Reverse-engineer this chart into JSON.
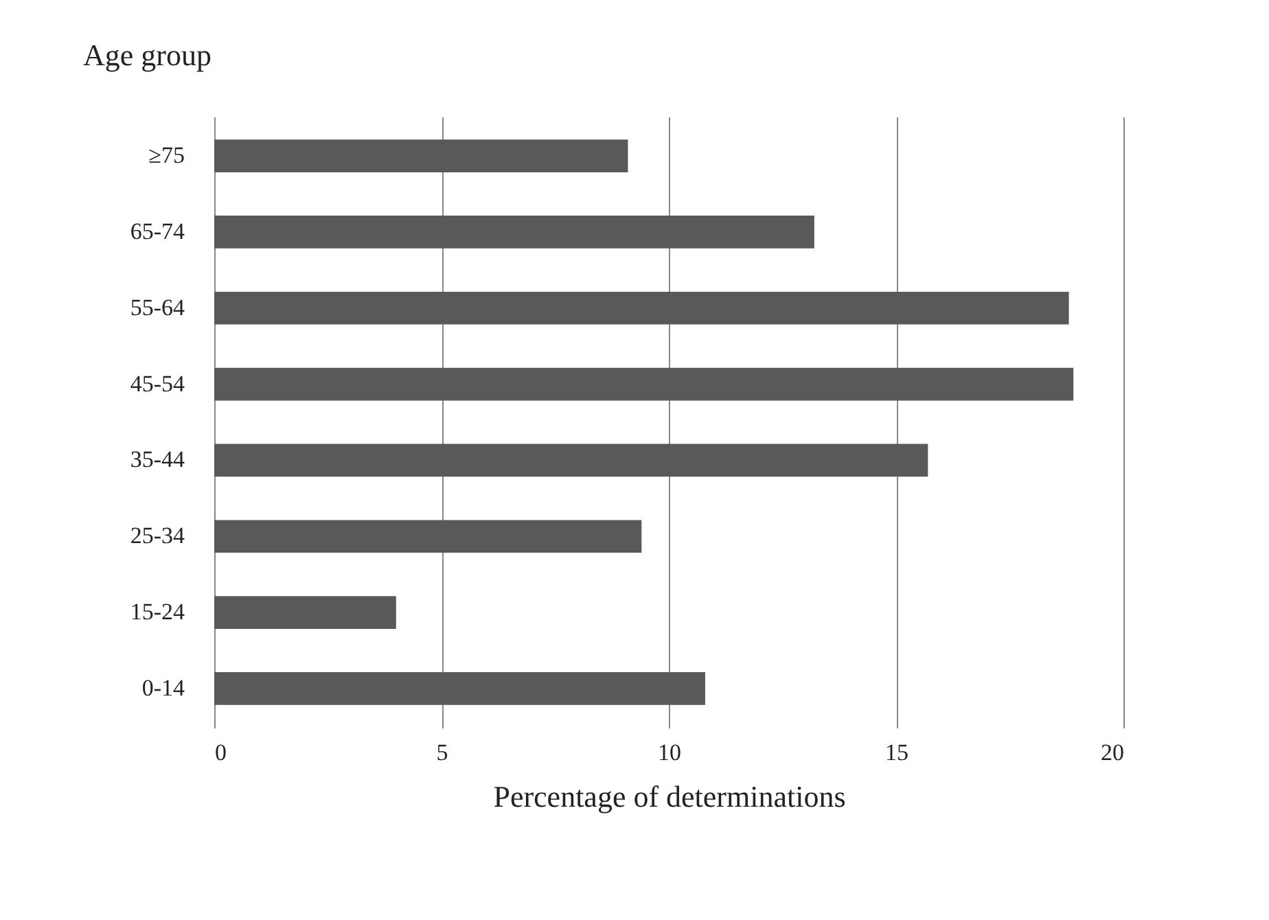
{
  "chart_data": {
    "type": "bar",
    "orientation": "horizontal",
    "ylabel": "Age group",
    "xlabel": "Percentage of determinations",
    "categories": [
      "≥75",
      "65-74",
      "55-64",
      "45-54",
      "35-44",
      "25-34",
      "15-24",
      "0-14"
    ],
    "values": [
      9.1,
      13.2,
      18.8,
      18.9,
      15.7,
      9.4,
      4.0,
      10.8
    ],
    "color": "#595959",
    "xlim": [
      0,
      20
    ],
    "xticks": [
      0,
      5,
      10,
      15,
      20
    ],
    "grid": "x"
  }
}
